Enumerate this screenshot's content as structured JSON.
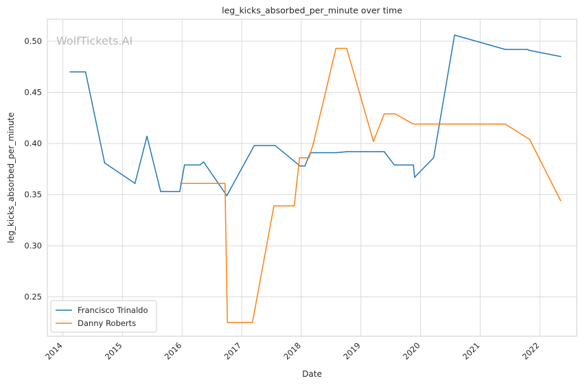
{
  "chart_data": {
    "type": "line",
    "title": "leg_kicks_absorbed_per_minute over time",
    "xlabel": "Date",
    "ylabel": "leg_kicks_absorbed_per_minute",
    "watermark": "WolfTickets.AI",
    "x_ticks": [
      "2014",
      "2015",
      "2016",
      "2017",
      "2018",
      "2019",
      "2020",
      "2021",
      "2022"
    ],
    "y_ticks": [
      "0.25",
      "0.30",
      "0.35",
      "0.40",
      "0.45",
      "0.50"
    ],
    "xlim": [
      2013.74,
      2022.62
    ],
    "ylim": [
      0.2115,
      0.5215
    ],
    "grid": true,
    "legend_position": "lower-left",
    "series": [
      {
        "name": "Francisco Trinaldo",
        "color": "#1f77b4",
        "points": [
          [
            2014.12,
            0.47
          ],
          [
            2014.38,
            0.47
          ],
          [
            2014.7,
            0.381
          ],
          [
            2015.21,
            0.361
          ],
          [
            2015.41,
            0.407
          ],
          [
            2015.64,
            0.353
          ],
          [
            2015.96,
            0.353
          ],
          [
            2016.04,
            0.379
          ],
          [
            2016.3,
            0.379
          ],
          [
            2016.36,
            0.382
          ],
          [
            2016.75,
            0.349
          ],
          [
            2017.21,
            0.398
          ],
          [
            2017.56,
            0.398
          ],
          [
            2017.98,
            0.378
          ],
          [
            2018.06,
            0.378
          ],
          [
            2018.15,
            0.391
          ],
          [
            2018.58,
            0.391
          ],
          [
            2018.77,
            0.392
          ],
          [
            2019.39,
            0.392
          ],
          [
            2019.56,
            0.379
          ],
          [
            2019.88,
            0.379
          ],
          [
            2019.9,
            0.367
          ],
          [
            2020.22,
            0.386
          ],
          [
            2020.57,
            0.506
          ],
          [
            2021.42,
            0.492
          ],
          [
            2021.79,
            0.492
          ],
          [
            2021.83,
            0.491
          ],
          [
            2022.35,
            0.485
          ]
        ]
      },
      {
        "name": "Danny Roberts",
        "color": "#ff7f0e",
        "points": [
          [
            2015.97,
            0.361
          ],
          [
            2016.72,
            0.361
          ],
          [
            2016.76,
            0.225
          ],
          [
            2017.18,
            0.225
          ],
          [
            2017.54,
            0.339
          ],
          [
            2017.88,
            0.339
          ],
          [
            2017.97,
            0.386
          ],
          [
            2018.13,
            0.386
          ],
          [
            2018.21,
            0.402
          ],
          [
            2018.58,
            0.493
          ],
          [
            2018.76,
            0.493
          ],
          [
            2019.21,
            0.402
          ],
          [
            2019.39,
            0.429
          ],
          [
            2019.57,
            0.429
          ],
          [
            2019.88,
            0.419
          ],
          [
            2021.42,
            0.419
          ],
          [
            2021.83,
            0.404
          ],
          [
            2022.35,
            0.344
          ]
        ]
      }
    ]
  }
}
